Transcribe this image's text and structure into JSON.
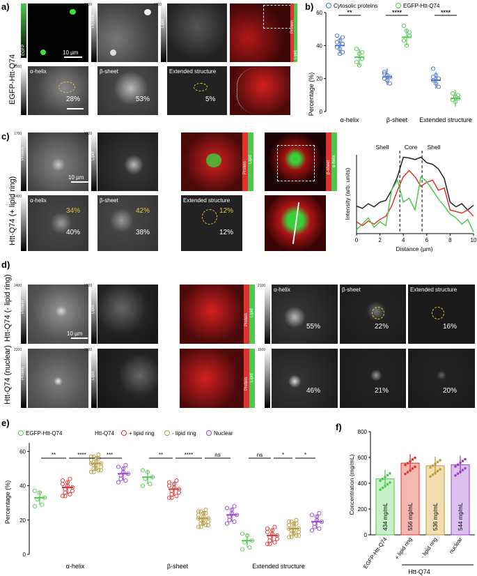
{
  "panels": {
    "a": "a)",
    "b": "b)",
    "c": "c)",
    "d": "d)",
    "e": "e)",
    "f": "f)"
  },
  "row_labels": {
    "a": "EGFP-Htt-Q74",
    "c": "Htt-Q74 (+ lipid ring)",
    "d1": "Htt-Q74 (- lipid ring)",
    "d2": "Htt-Q74 (nuclear)"
  },
  "channel_labels": {
    "egfp": "EGFP",
    "protein": "Protein",
    "lipid": "Lipid",
    "beta_sheet": "β-sheet",
    "alpha_helix": "α-helix"
  },
  "tile_titles": {
    "alpha": "α-helix",
    "beta": "β-sheet",
    "extended": "Extended structure"
  },
  "scalebar": "10 µm",
  "colorbar_values": {
    "a_protein": "2000",
    "a_lipid": "2400",
    "a_alpha": "2000",
    "c_protein": "1700",
    "c_lipid": "3600",
    "c_alpha": "1400",
    "d1_protein": "2400",
    "d1_lipid": "3200",
    "d1_alpha": "2100",
    "d2_protein": "2200",
    "d2_lipid": "3300",
    "d2_alpha": "1500",
    "zero": "0"
  },
  "percentages": {
    "a": [
      "28%",
      "53%",
      "5%"
    ],
    "c_white": [
      "40%",
      "38%",
      "12%"
    ],
    "c_yellow": [
      "34%",
      "42%",
      "12%"
    ],
    "d1": [
      "55%",
      "22%",
      "16%"
    ],
    "d2": [
      "46%",
      "21%",
      "20%"
    ]
  },
  "colors": {
    "cytosolic": "#4a72c9",
    "egfp": "#4ec94e",
    "lipid_ring": "#e0322f",
    "no_lipid_ring": "#b59a3a",
    "nuclear": "#9b3fd0",
    "bar_egfp": "#c9efc9",
    "bar_lipid": "#f4b8b3",
    "bar_nolipid": "#f1ddb0",
    "bar_nuclear": "#dcc0ee"
  },
  "chart_data": [
    {
      "id": "b",
      "type": "scatter",
      "ylabel": "Percentage (%)",
      "ylim": [
        0,
        60
      ],
      "yticks": [
        0,
        20,
        40,
        60
      ],
      "categories": [
        "α-helix",
        "β-sheet",
        "Extended structure"
      ],
      "legend": [
        "Cytosolic proteins",
        "EGFP-Htt-Q74"
      ],
      "series": [
        {
          "name": "Cytosolic proteins",
          "means": [
            40,
            21,
            19
          ],
          "points": [
            [
              46,
              43,
              41,
              39,
              38,
              36,
              42,
              35,
              45
            ],
            [
              24,
              22,
              21,
              20,
              19,
              17,
              23
            ],
            [
              26,
              22,
              20,
              19,
              17,
              15,
              21
            ]
          ]
        },
        {
          "name": "EGFP-Htt-Q74",
          "means": [
            33,
            45,
            8
          ],
          "points": [
            [
              38,
              35,
              32,
              30,
              28,
              36
            ],
            [
              52,
              49,
              46,
              43,
              40,
              48
            ],
            [
              11,
              9,
              8,
              7,
              6,
              10
            ]
          ]
        }
      ],
      "significance": [
        "**",
        "****",
        "****"
      ]
    },
    {
      "id": "c",
      "type": "line",
      "xlabel": "Distance (µm)",
      "ylabel": "Intensity (arb. units)",
      "xlim": [
        0,
        10
      ],
      "xticks": [
        0,
        2,
        4,
        6,
        8,
        10
      ],
      "regions": [
        "Shell",
        "Core",
        "Shell"
      ],
      "dividers": [
        3.7,
        5.6
      ],
      "x": [
        0,
        0.5,
        1,
        1.5,
        2,
        2.5,
        3,
        3.5,
        4,
        4.5,
        5,
        5.5,
        6,
        6.5,
        7,
        7.5,
        8,
        8.5,
        9,
        9.5,
        10
      ],
      "series": [
        {
          "color": "#222222",
          "values": [
            0.35,
            0.32,
            0.38,
            0.34,
            0.4,
            0.42,
            0.55,
            0.72,
            0.97,
            0.96,
            0.94,
            0.97,
            0.9,
            0.88,
            0.82,
            0.7,
            0.4,
            0.34,
            0.38,
            0.3,
            0.36
          ]
        },
        {
          "color": "#e0322f",
          "values": [
            0.15,
            0.1,
            0.16,
            0.12,
            0.18,
            0.22,
            0.35,
            0.55,
            0.72,
            0.8,
            0.72,
            0.6,
            0.65,
            0.68,
            0.55,
            0.58,
            0.3,
            0.28,
            0.26,
            0.3,
            0.22
          ]
        },
        {
          "color": "#4ec94e",
          "values": [
            0.05,
            0.12,
            0.2,
            0.08,
            0.15,
            0.1,
            0.55,
            0.68,
            0.4,
            0.45,
            0.3,
            0.72,
            0.66,
            0.55,
            0.44,
            0.35,
            0.25,
            0.2,
            0.12,
            0.18,
            0.02
          ]
        }
      ]
    },
    {
      "id": "e",
      "type": "scatter",
      "ylabel": "Percentage (%)",
      "ylim": [
        0,
        65
      ],
      "yticks": [
        0,
        20,
        40,
        60
      ],
      "categories": [
        "α-helix",
        "β-sheet",
        "Extended structure"
      ],
      "legend_prefix": "Htt-Q74",
      "legend": [
        "EGFP-Htt-Q74",
        "+ lipid ring",
        "- lipid ring",
        "Nuclear"
      ],
      "series": [
        {
          "name": "EGFP-Htt-Q74",
          "means": [
            33,
            45,
            8
          ]
        },
        {
          "name": "+ lipid ring",
          "means": [
            39,
            38,
            11
          ]
        },
        {
          "name": "- lipid ring",
          "means": [
            53,
            21,
            15
          ]
        },
        {
          "name": "Nuclear",
          "means": [
            47,
            23,
            19
          ]
        }
      ],
      "significance": [
        [
          "**",
          "****",
          "***"
        ],
        [
          "**",
          "****",
          "ns"
        ],
        [
          "ns",
          "*",
          "*"
        ]
      ]
    },
    {
      "id": "f",
      "type": "bar",
      "ylabel": "Concentration (mg/mL)",
      "ylim": [
        0,
        800
      ],
      "yticks": [
        0,
        200,
        400,
        600,
        800
      ],
      "categories": [
        "EGFP-Htt-Q74",
        "+ lipid ring",
        "- lipid ring",
        "nuclear"
      ],
      "group_label": "Htt-Q74",
      "values": [
        434,
        556,
        536,
        544
      ],
      "value_labels": [
        "434 mg/mL",
        "556 mg/mL",
        "536 mg/mL",
        "544 mg/mL"
      ]
    }
  ]
}
